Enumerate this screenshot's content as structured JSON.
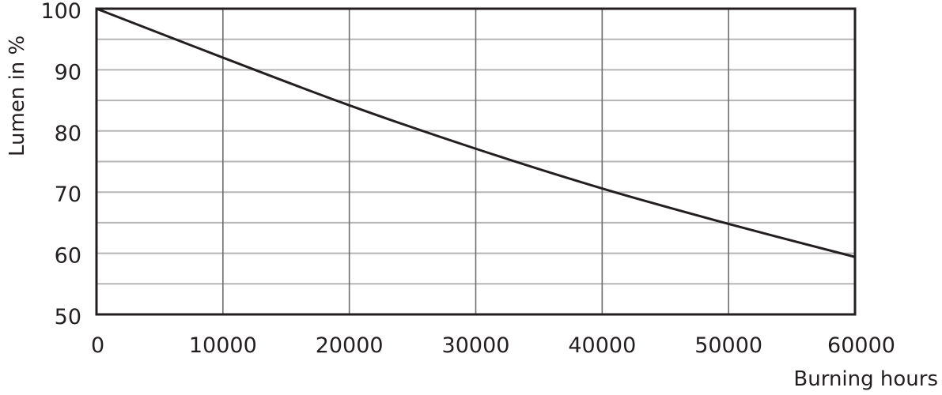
{
  "chart_data": {
    "type": "line",
    "title": "",
    "xlabel": "Burning hours",
    "ylabel": "Lumen in %",
    "xlim": [
      0,
      60000
    ],
    "ylim": [
      50,
      100
    ],
    "x_ticks": [
      0,
      10000,
      20000,
      30000,
      40000,
      50000,
      60000
    ],
    "x_tick_labels": [
      "0",
      "10000",
      "20000",
      "30000",
      "40000",
      "50000",
      "60000"
    ],
    "y_ticks": [
      50,
      60,
      70,
      80,
      90,
      100
    ],
    "y_tick_labels": [
      "50",
      "60",
      "70",
      "80",
      "90",
      "100"
    ],
    "grid": {
      "vertical_every": 10000,
      "horizontal_every": 5
    },
    "series": [
      {
        "x": [
          0,
          10000,
          20000,
          30000,
          40000,
          50000,
          60000
        ],
        "y": [
          100,
          92.0,
          84.2,
          77.1,
          70.6,
          64.8,
          59.4
        ],
        "color": "#231f20"
      }
    ]
  }
}
